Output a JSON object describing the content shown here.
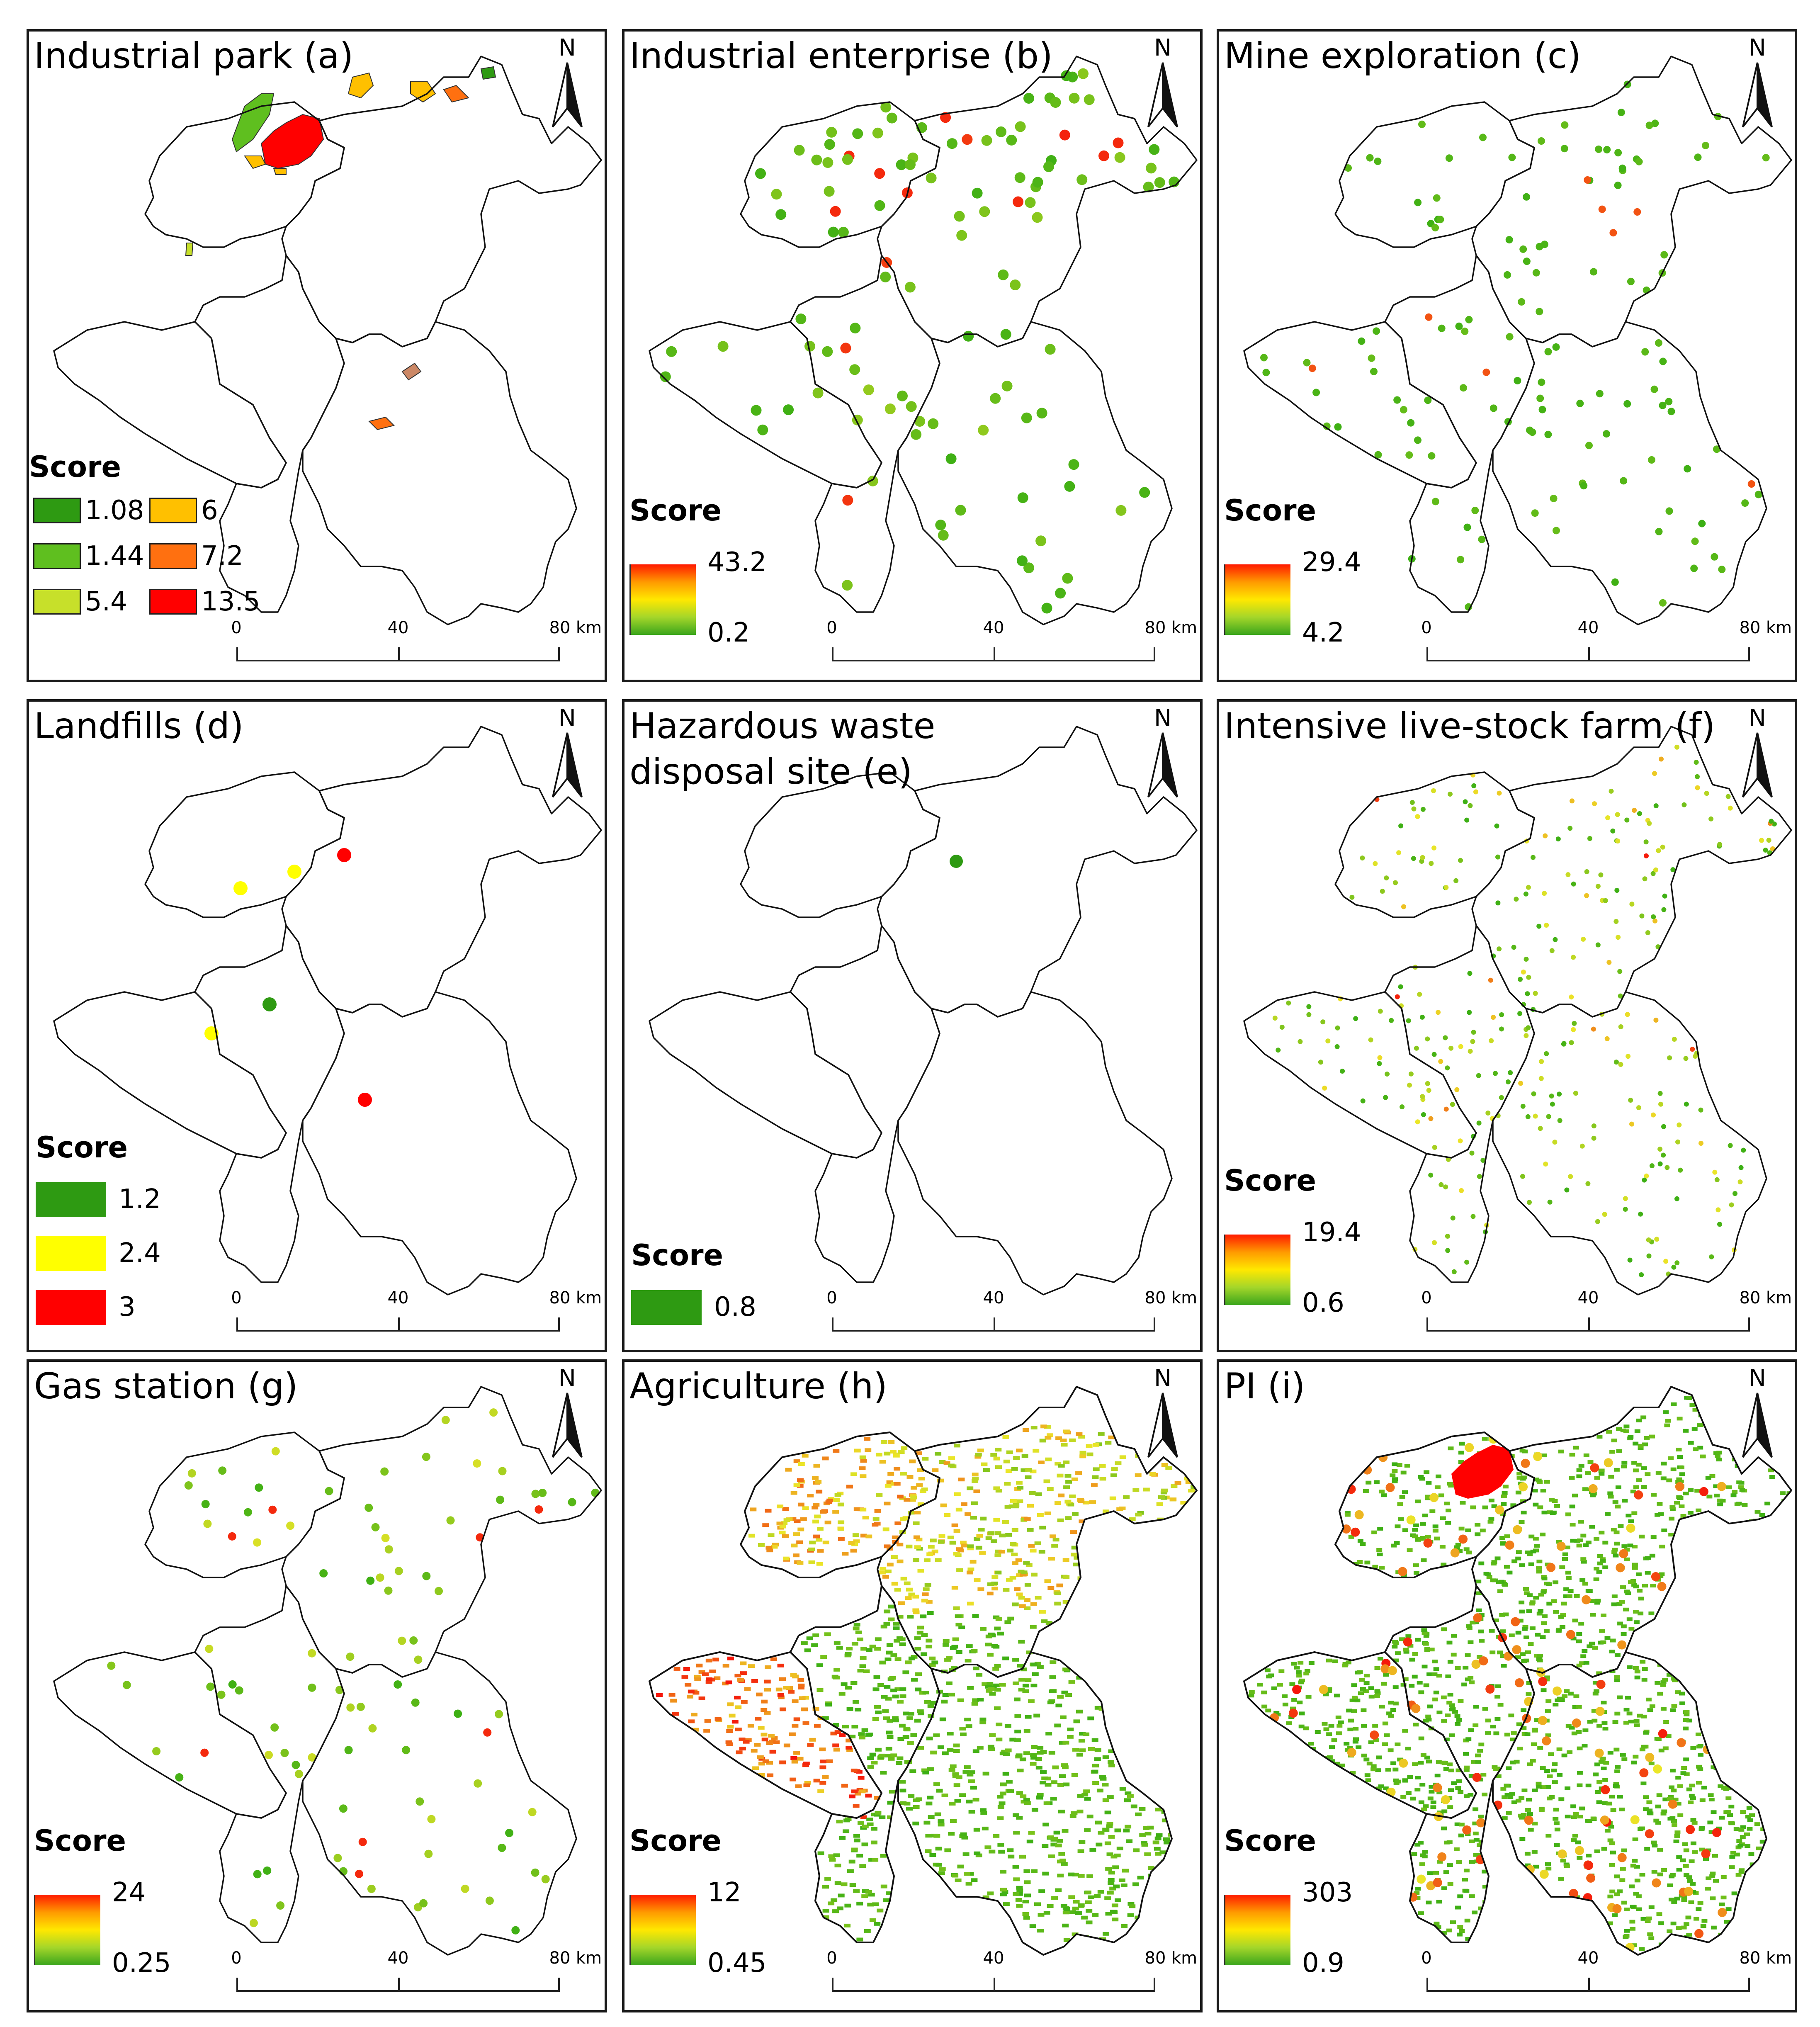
{
  "colors": {
    "outline": "#111111",
    "frame": "#1a1a1a",
    "green_dark": "#2e9a12",
    "green_mid": "#5fbf1f",
    "yellow_green": "#c7e02a",
    "yellow": "#ffff00",
    "orange_yellow": "#ffc000",
    "orange": "#ff7010",
    "red": "#ff0000"
  },
  "north_label": "N",
  "scale": {
    "ticks": [
      "0",
      "40",
      "80"
    ],
    "unit": "km"
  },
  "legend_title": "Score",
  "panels": [
    {
      "id": "a",
      "title": "Industrial park (a)",
      "legend": {
        "type": "categorical",
        "items": [
          {
            "value": "1.08",
            "color": "#2e9a12"
          },
          {
            "value": "6",
            "color": "#ffc000"
          },
          {
            "value": "1.44",
            "color": "#5fbf1f"
          },
          {
            "value": "7.2",
            "color": "#ff7010"
          },
          {
            "value": "5.4",
            "color": "#c7e02a"
          },
          {
            "value": "13.5",
            "color": "#ff0000"
          }
        ]
      }
    },
    {
      "id": "b",
      "title": "Industrial enterprise (b)",
      "legend": {
        "type": "gradient",
        "max": "43.2",
        "min": "0.2"
      }
    },
    {
      "id": "c",
      "title": "Mine exploration (c)",
      "legend": {
        "type": "gradient",
        "max": "29.4",
        "min": "4.2"
      }
    },
    {
      "id": "d",
      "title": "Landfills (d)",
      "legend": {
        "type": "categorical",
        "items": [
          {
            "value": "1.2",
            "color": "#2e9a12"
          },
          {
            "value": "2.4",
            "color": "#ffff00"
          },
          {
            "value": "3",
            "color": "#ff0000"
          }
        ]
      }
    },
    {
      "id": "e",
      "title": "Hazardous waste\n  disposal site (e)",
      "legend": {
        "type": "categorical",
        "items": [
          {
            "value": "0.8",
            "color": "#2e9a12"
          }
        ]
      }
    },
    {
      "id": "f",
      "title": "Intensive live-stock farm (f)",
      "legend": {
        "type": "gradient",
        "max": "19.4",
        "min": "0.6"
      }
    },
    {
      "id": "g",
      "title": "Gas station (g)",
      "legend": {
        "type": "gradient",
        "max": "24",
        "min": "0.25"
      }
    },
    {
      "id": "h",
      "title": "Agriculture (h)",
      "legend": {
        "type": "gradient",
        "max": "12",
        "min": "0.45"
      }
    },
    {
      "id": "i",
      "title": "PI (i)",
      "legend": {
        "type": "gradient",
        "max": "303",
        "min": "0.9"
      }
    }
  ]
}
